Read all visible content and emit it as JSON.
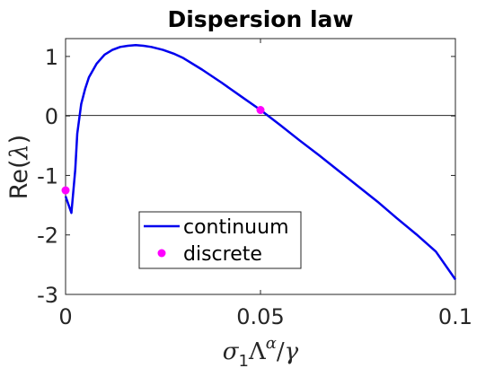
{
  "chart_data": {
    "type": "line",
    "title": "Dispersion law",
    "xlabel": "σ₁Λ^α/γ",
    "ylabel": "Re(λ)",
    "xlim": [
      0,
      0.1
    ],
    "ylim": [
      -3,
      1.3
    ],
    "xticks": [
      0,
      0.05,
      0.1
    ],
    "xtick_labels": [
      "0",
      "0.05",
      "0.1"
    ],
    "yticks": [
      -3,
      -2,
      -1,
      0,
      1
    ],
    "ytick_labels": [
      "-3",
      "-2",
      "-1",
      "0",
      "1"
    ],
    "grid": false,
    "zero_line": true,
    "legend_position": "lower-left",
    "series": [
      {
        "name": "continuum",
        "kind": "line",
        "color": "#0000ee",
        "x": [
          0,
          0.0015,
          0.0025,
          0.003,
          0.0035,
          0.004,
          0.005,
          0.006,
          0.008,
          0.01,
          0.012,
          0.014,
          0.016,
          0.018,
          0.02,
          0.022,
          0.025,
          0.028,
          0.03,
          0.035,
          0.04,
          0.045,
          0.05,
          0.055,
          0.06,
          0.065,
          0.07,
          0.075,
          0.08,
          0.085,
          0.09,
          0.095,
          0.1
        ],
        "y": [
          -1.35,
          -1.63,
          -0.9,
          -0.3,
          -0.05,
          0.2,
          0.45,
          0.65,
          0.88,
          1.03,
          1.11,
          1.16,
          1.18,
          1.19,
          1.18,
          1.16,
          1.11,
          1.04,
          0.98,
          0.78,
          0.56,
          0.33,
          0.1,
          -0.15,
          -0.41,
          -0.66,
          -0.92,
          -1.18,
          -1.44,
          -1.72,
          -1.99,
          -2.28,
          -2.75
        ]
      },
      {
        "name": "discrete",
        "kind": "scatter",
        "color": "#ff00ff",
        "x": [
          0,
          0.05
        ],
        "y": [
          -1.25,
          0.1
        ]
      }
    ]
  }
}
